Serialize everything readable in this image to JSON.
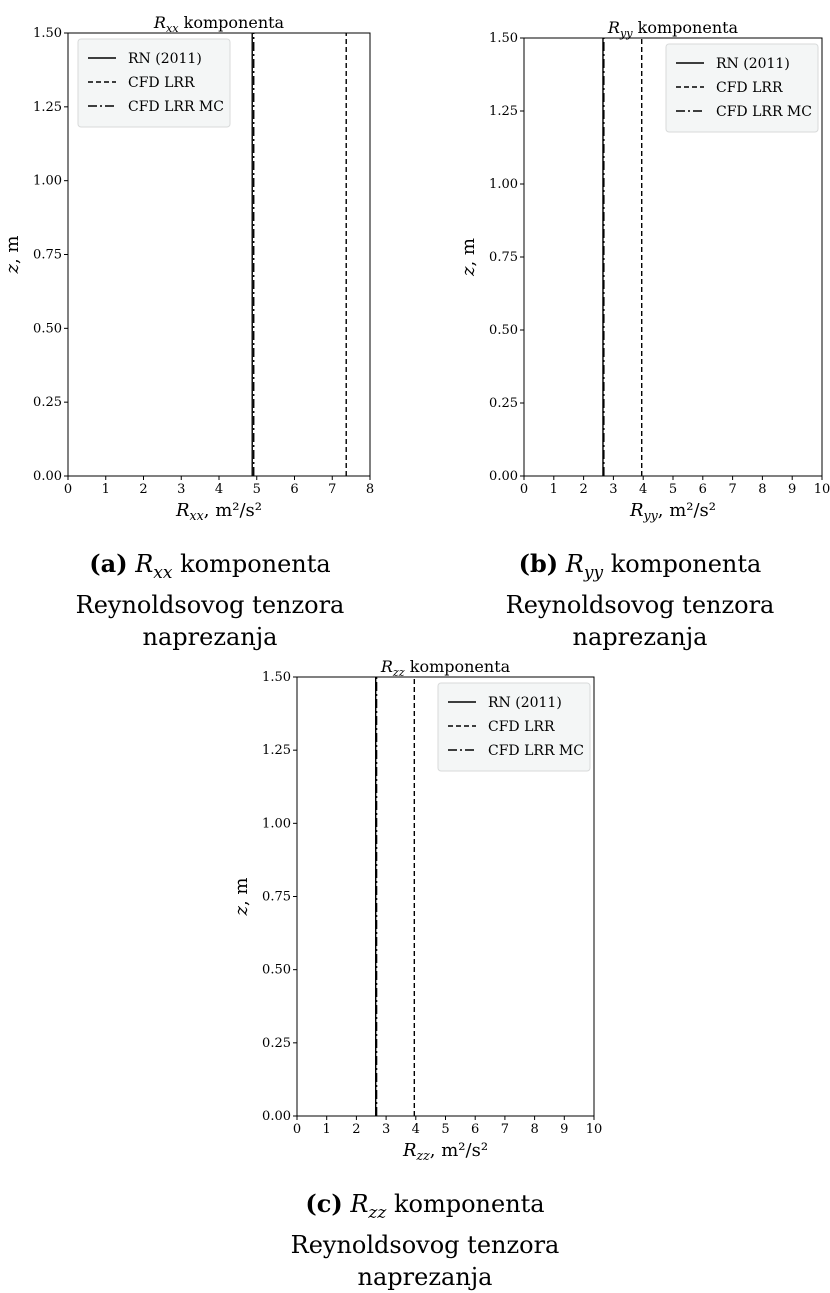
{
  "chart_data": [
    {
      "type": "line",
      "title_var": "R",
      "title_sub": "xx",
      "title_word": "komponenta",
      "ylabel_var": "z",
      "ylabel_unit": ", m",
      "xlabel_var": "R",
      "xlabel_sub": "xx",
      "xlabel_unit": ", m²/s²",
      "xlim": [
        0,
        8
      ],
      "ylim": [
        0,
        1.5
      ],
      "xticks": [
        "0",
        "1",
        "2",
        "3",
        "4",
        "5",
        "6",
        "7",
        "8"
      ],
      "yticks": [
        "0.00",
        "0.25",
        "0.50",
        "0.75",
        "1.00",
        "1.25",
        "1.50"
      ],
      "legend_position": "top-left",
      "series": [
        {
          "name": "RN (2011)",
          "style": "solid",
          "x": [
            4.88,
            4.88
          ],
          "y": [
            0,
            1.5
          ]
        },
        {
          "name": "CFD LRR",
          "style": "dashed",
          "x": [
            7.37,
            7.37
          ],
          "y": [
            0,
            1.5
          ]
        },
        {
          "name": "CFD LRR MC",
          "style": "dashdot",
          "x": [
            4.92,
            4.92
          ],
          "y": [
            0,
            1.5
          ]
        }
      ],
      "caption": {
        "label": "(a)",
        "var": "R",
        "sub": "xx",
        "line1_rest": " komponenta",
        "line2": "Reynoldsovog tenzora",
        "line3": "naprezanja"
      }
    },
    {
      "type": "line",
      "title_var": "R",
      "title_sub": "yy",
      "title_word": "komponenta",
      "ylabel_var": "z",
      "ylabel_unit": ", m",
      "xlabel_var": "R",
      "xlabel_sub": "yy",
      "xlabel_unit": ", m²/s²",
      "xlim": [
        0,
        10
      ],
      "ylim": [
        0,
        1.5
      ],
      "xticks": [
        "0",
        "1",
        "2",
        "3",
        "4",
        "5",
        "6",
        "7",
        "8",
        "9",
        "10"
      ],
      "yticks": [
        "0.00",
        "0.25",
        "0.50",
        "0.75",
        "1.00",
        "1.25",
        "1.50"
      ],
      "legend_position": "top-right",
      "series": [
        {
          "name": "RN (2011)",
          "style": "solid",
          "x": [
            2.65,
            2.65
          ],
          "y": [
            0,
            1.5
          ]
        },
        {
          "name": "CFD LRR",
          "style": "dashed",
          "x": [
            3.95,
            3.95
          ],
          "y": [
            0,
            1.5
          ]
        },
        {
          "name": "CFD LRR MC",
          "style": "dashdot",
          "x": [
            2.68,
            2.68
          ],
          "y": [
            0,
            1.5
          ]
        }
      ],
      "caption": {
        "label": "(b)",
        "var": "R",
        "sub": "yy",
        "line1_rest": " komponenta",
        "line2": "Reynoldsovog tenzora",
        "line3": "naprezanja"
      }
    },
    {
      "type": "line",
      "title_var": "R",
      "title_sub": "zz",
      "title_word": "komponenta",
      "ylabel_var": "z",
      "ylabel_unit": ", m",
      "xlabel_var": "R",
      "xlabel_sub": "zz",
      "xlabel_unit": ", m²/s²",
      "xlim": [
        0,
        10
      ],
      "ylim": [
        0,
        1.5
      ],
      "xticks": [
        "0",
        "1",
        "2",
        "3",
        "4",
        "5",
        "6",
        "7",
        "8",
        "9",
        "10"
      ],
      "yticks": [
        "0.00",
        "0.25",
        "0.50",
        "0.75",
        "1.00",
        "1.25",
        "1.50"
      ],
      "legend_position": "top-right",
      "series": [
        {
          "name": "RN (2011)",
          "style": "solid",
          "x": [
            2.65,
            2.65
          ],
          "y": [
            0,
            1.5
          ]
        },
        {
          "name": "CFD LRR",
          "style": "dashed",
          "x": [
            3.95,
            3.95
          ],
          "y": [
            0,
            1.5
          ]
        },
        {
          "name": "CFD LRR MC",
          "style": "dashdot",
          "x": [
            2.68,
            2.68
          ],
          "y": [
            0,
            1.5
          ]
        }
      ],
      "caption": {
        "label": "(c)",
        "var": "R",
        "sub": "zz",
        "line1_rest": " komponenta",
        "line2": "Reynoldsovog tenzora",
        "line3": "naprezanja"
      }
    }
  ]
}
